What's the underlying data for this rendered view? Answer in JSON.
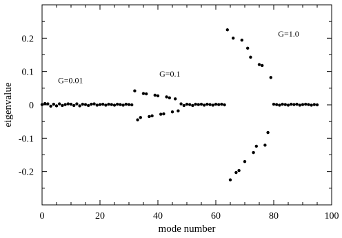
{
  "chart_data": {
    "type": "scatter",
    "xlabel": "mode number",
    "ylabel": "eigenvalue",
    "xlim": [
      0,
      100
    ],
    "ylim": [
      -0.3,
      0.3
    ],
    "xticks": [
      0,
      20,
      40,
      60,
      80,
      100
    ],
    "yticks": [
      -0.2,
      -0.1,
      0,
      0.1,
      0.2
    ],
    "ytick_labels": [
      "-0.2",
      "-0.1",
      "0",
      "0.1",
      "0.2"
    ],
    "grid": false,
    "annotations": [
      {
        "text": "G=0.01",
        "x": 5.5,
        "y": 0.065
      },
      {
        "text": "G=0.1",
        "x": 40.5,
        "y": 0.085
      },
      {
        "text": "G=1.0",
        "x": 81.5,
        "y": 0.205
      }
    ],
    "series": [
      {
        "points": [
          [
            0,
            0.001
          ],
          [
            1,
            0.004
          ],
          [
            2,
            0.003
          ],
          [
            3,
            -0.004
          ],
          [
            4,
            0.002
          ],
          [
            5,
            -0.003
          ],
          [
            6,
            0.003
          ],
          [
            7,
            -0.002
          ],
          [
            8,
            0.001
          ],
          [
            9,
            0.003
          ],
          [
            10,
            0.002
          ],
          [
            11,
            -0.002
          ],
          [
            12,
            0.003
          ],
          [
            13,
            -0.003
          ],
          [
            14,
            0.002
          ],
          [
            15,
            0.001
          ],
          [
            16,
            -0.002
          ],
          [
            17,
            0.002
          ],
          [
            18,
            0.003
          ],
          [
            19,
            -0.001
          ],
          [
            20,
            0.001
          ],
          [
            21,
            0.002
          ],
          [
            22,
            -0.001
          ],
          [
            23,
            0.002
          ],
          [
            24,
            0.001
          ],
          [
            25,
            -0.001
          ],
          [
            26,
            0.002
          ],
          [
            27,
            0.001
          ],
          [
            28,
            -0.001
          ],
          [
            29,
            0.002
          ],
          [
            30,
            0.001
          ],
          [
            31,
            0.0
          ],
          [
            32,
            0.042
          ],
          [
            33,
            -0.045
          ],
          [
            34,
            -0.038
          ],
          [
            35,
            0.034
          ],
          [
            36,
            0.033
          ],
          [
            37,
            -0.035
          ],
          [
            38,
            -0.033
          ],
          [
            39,
            0.029
          ],
          [
            40,
            0.027
          ],
          [
            41,
            -0.028
          ],
          [
            42,
            -0.027
          ],
          [
            43,
            0.024
          ],
          [
            44,
            0.021
          ],
          [
            45,
            -0.021
          ],
          [
            46,
            0.018
          ],
          [
            47,
            -0.018
          ],
          [
            48,
            0.003
          ],
          [
            49,
            -0.002
          ],
          [
            50,
            0.002
          ],
          [
            51,
            0.001
          ],
          [
            52,
            -0.002
          ],
          [
            53,
            0.002
          ],
          [
            54,
            0.001
          ],
          [
            55,
            0.002
          ],
          [
            56,
            -0.001
          ],
          [
            57,
            0.002
          ],
          [
            58,
            0.001
          ],
          [
            59,
            -0.001
          ],
          [
            60,
            0.002
          ],
          [
            61,
            0.001
          ],
          [
            62,
            0.002
          ],
          [
            63,
            0.0
          ],
          [
            64,
            0.225
          ],
          [
            65,
            -0.225
          ],
          [
            66,
            0.2
          ],
          [
            67,
            -0.203
          ],
          [
            68,
            -0.197
          ],
          [
            69,
            0.194
          ],
          [
            70,
            -0.17
          ],
          [
            71,
            0.17
          ],
          [
            72,
            0.143
          ],
          [
            73,
            -0.143
          ],
          [
            74,
            -0.124
          ],
          [
            75,
            0.121
          ],
          [
            76,
            0.118
          ],
          [
            77,
            -0.121
          ],
          [
            78,
            -0.083
          ],
          [
            79,
            0.082
          ],
          [
            80,
            0.002
          ],
          [
            81,
            0.001
          ],
          [
            82,
            -0.001
          ],
          [
            83,
            0.002
          ],
          [
            84,
            0.001
          ],
          [
            85,
            -0.001
          ],
          [
            86,
            0.002
          ],
          [
            87,
            0.001
          ],
          [
            88,
            0.002
          ],
          [
            89,
            -0.001
          ],
          [
            90,
            0.001
          ],
          [
            91,
            0.002
          ],
          [
            92,
            0.001
          ],
          [
            93,
            -0.001
          ],
          [
            94,
            0.001
          ],
          [
            95,
            0.0
          ]
        ]
      }
    ]
  }
}
